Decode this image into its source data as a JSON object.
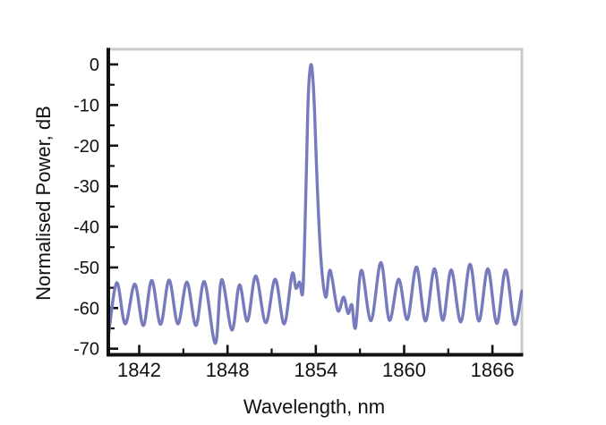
{
  "figure": {
    "background_color": "#ffffff",
    "line_color": "#757bbd",
    "axis_color": "#111111",
    "frame_color": "#c9c9c9",
    "text_color": "#111111"
  },
  "chart_data": {
    "type": "line",
    "title": "",
    "xlabel": "Wavelength, nm",
    "ylabel": "Normalised Power, dB",
    "xlim": [
      1839.9,
      1868.0
    ],
    "ylim": [
      -71.5,
      3.75
    ],
    "x_ticks": [
      1842,
      1848,
      1854,
      1860,
      1866
    ],
    "x_minor_ticks": [
      1845,
      1851,
      1857,
      1863
    ],
    "y_ticks": [
      0,
      -10,
      -20,
      -30,
      -40,
      -50,
      -60,
      -70
    ],
    "y_minor_ticks": [
      -5,
      -15,
      -25,
      -35,
      -45,
      -55,
      -65
    ],
    "grid": false,
    "legend": null,
    "main_peak": {
      "wavelength_nm": 1853.7,
      "power_db": 0
    },
    "series": [
      {
        "name": "normalised-power-spectrum",
        "color": "#757bbd",
        "points": [
          [
            1839.9,
            -67.0
          ],
          [
            1840.47,
            -53.8
          ],
          [
            1841.05,
            -63.9
          ],
          [
            1841.7,
            -54.1
          ],
          [
            1842.28,
            -64.3
          ],
          [
            1842.85,
            -53.2
          ],
          [
            1843.45,
            -64.0
          ],
          [
            1844.03,
            -53.1
          ],
          [
            1844.63,
            -63.9
          ],
          [
            1845.24,
            -53.6
          ],
          [
            1845.85,
            -64.3
          ],
          [
            1846.43,
            -53.5
          ],
          [
            1847.17,
            -68.7
          ],
          [
            1847.6,
            -53.0
          ],
          [
            1848.3,
            -65.4
          ],
          [
            1848.81,
            -54.3
          ],
          [
            1849.35,
            -63.2
          ],
          [
            1849.92,
            -52.1
          ],
          [
            1850.6,
            -63.6
          ],
          [
            1851.24,
            -52.9
          ],
          [
            1851.85,
            -63.9
          ],
          [
            1852.39,
            -51.6
          ],
          [
            1852.65,
            -55.1
          ],
          [
            1852.9,
            -53.6
          ],
          [
            1853.12,
            -55.8
          ],
          [
            1853.3,
            -35.0
          ],
          [
            1853.45,
            -12.0
          ],
          [
            1853.55,
            -3.5
          ],
          [
            1853.68,
            0.0
          ],
          [
            1853.8,
            -3.5
          ],
          [
            1853.92,
            -12.0
          ],
          [
            1854.1,
            -30.0
          ],
          [
            1854.35,
            -48.0
          ],
          [
            1854.67,
            -57.3
          ],
          [
            1854.98,
            -50.7
          ],
          [
            1855.49,
            -60.6
          ],
          [
            1855.89,
            -57.3
          ],
          [
            1856.19,
            -61.3
          ],
          [
            1856.45,
            -59.2
          ],
          [
            1856.7,
            -64.8
          ],
          [
            1857.1,
            -50.7
          ],
          [
            1857.75,
            -63.1
          ],
          [
            1858.42,
            -48.8
          ],
          [
            1859.0,
            -63.0
          ],
          [
            1859.63,
            -52.9
          ],
          [
            1860.22,
            -62.8
          ],
          [
            1860.84,
            -49.9
          ],
          [
            1861.45,
            -63.2
          ],
          [
            1862.06,
            -50.3
          ],
          [
            1862.63,
            -63.0
          ],
          [
            1863.2,
            -50.6
          ],
          [
            1863.85,
            -63.4
          ],
          [
            1864.48,
            -49.2
          ],
          [
            1865.08,
            -63.2
          ],
          [
            1865.69,
            -50.3
          ],
          [
            1866.3,
            -63.8
          ],
          [
            1866.9,
            -50.6
          ],
          [
            1867.5,
            -64.0
          ],
          [
            1868.0,
            -55.8
          ]
        ]
      }
    ]
  }
}
